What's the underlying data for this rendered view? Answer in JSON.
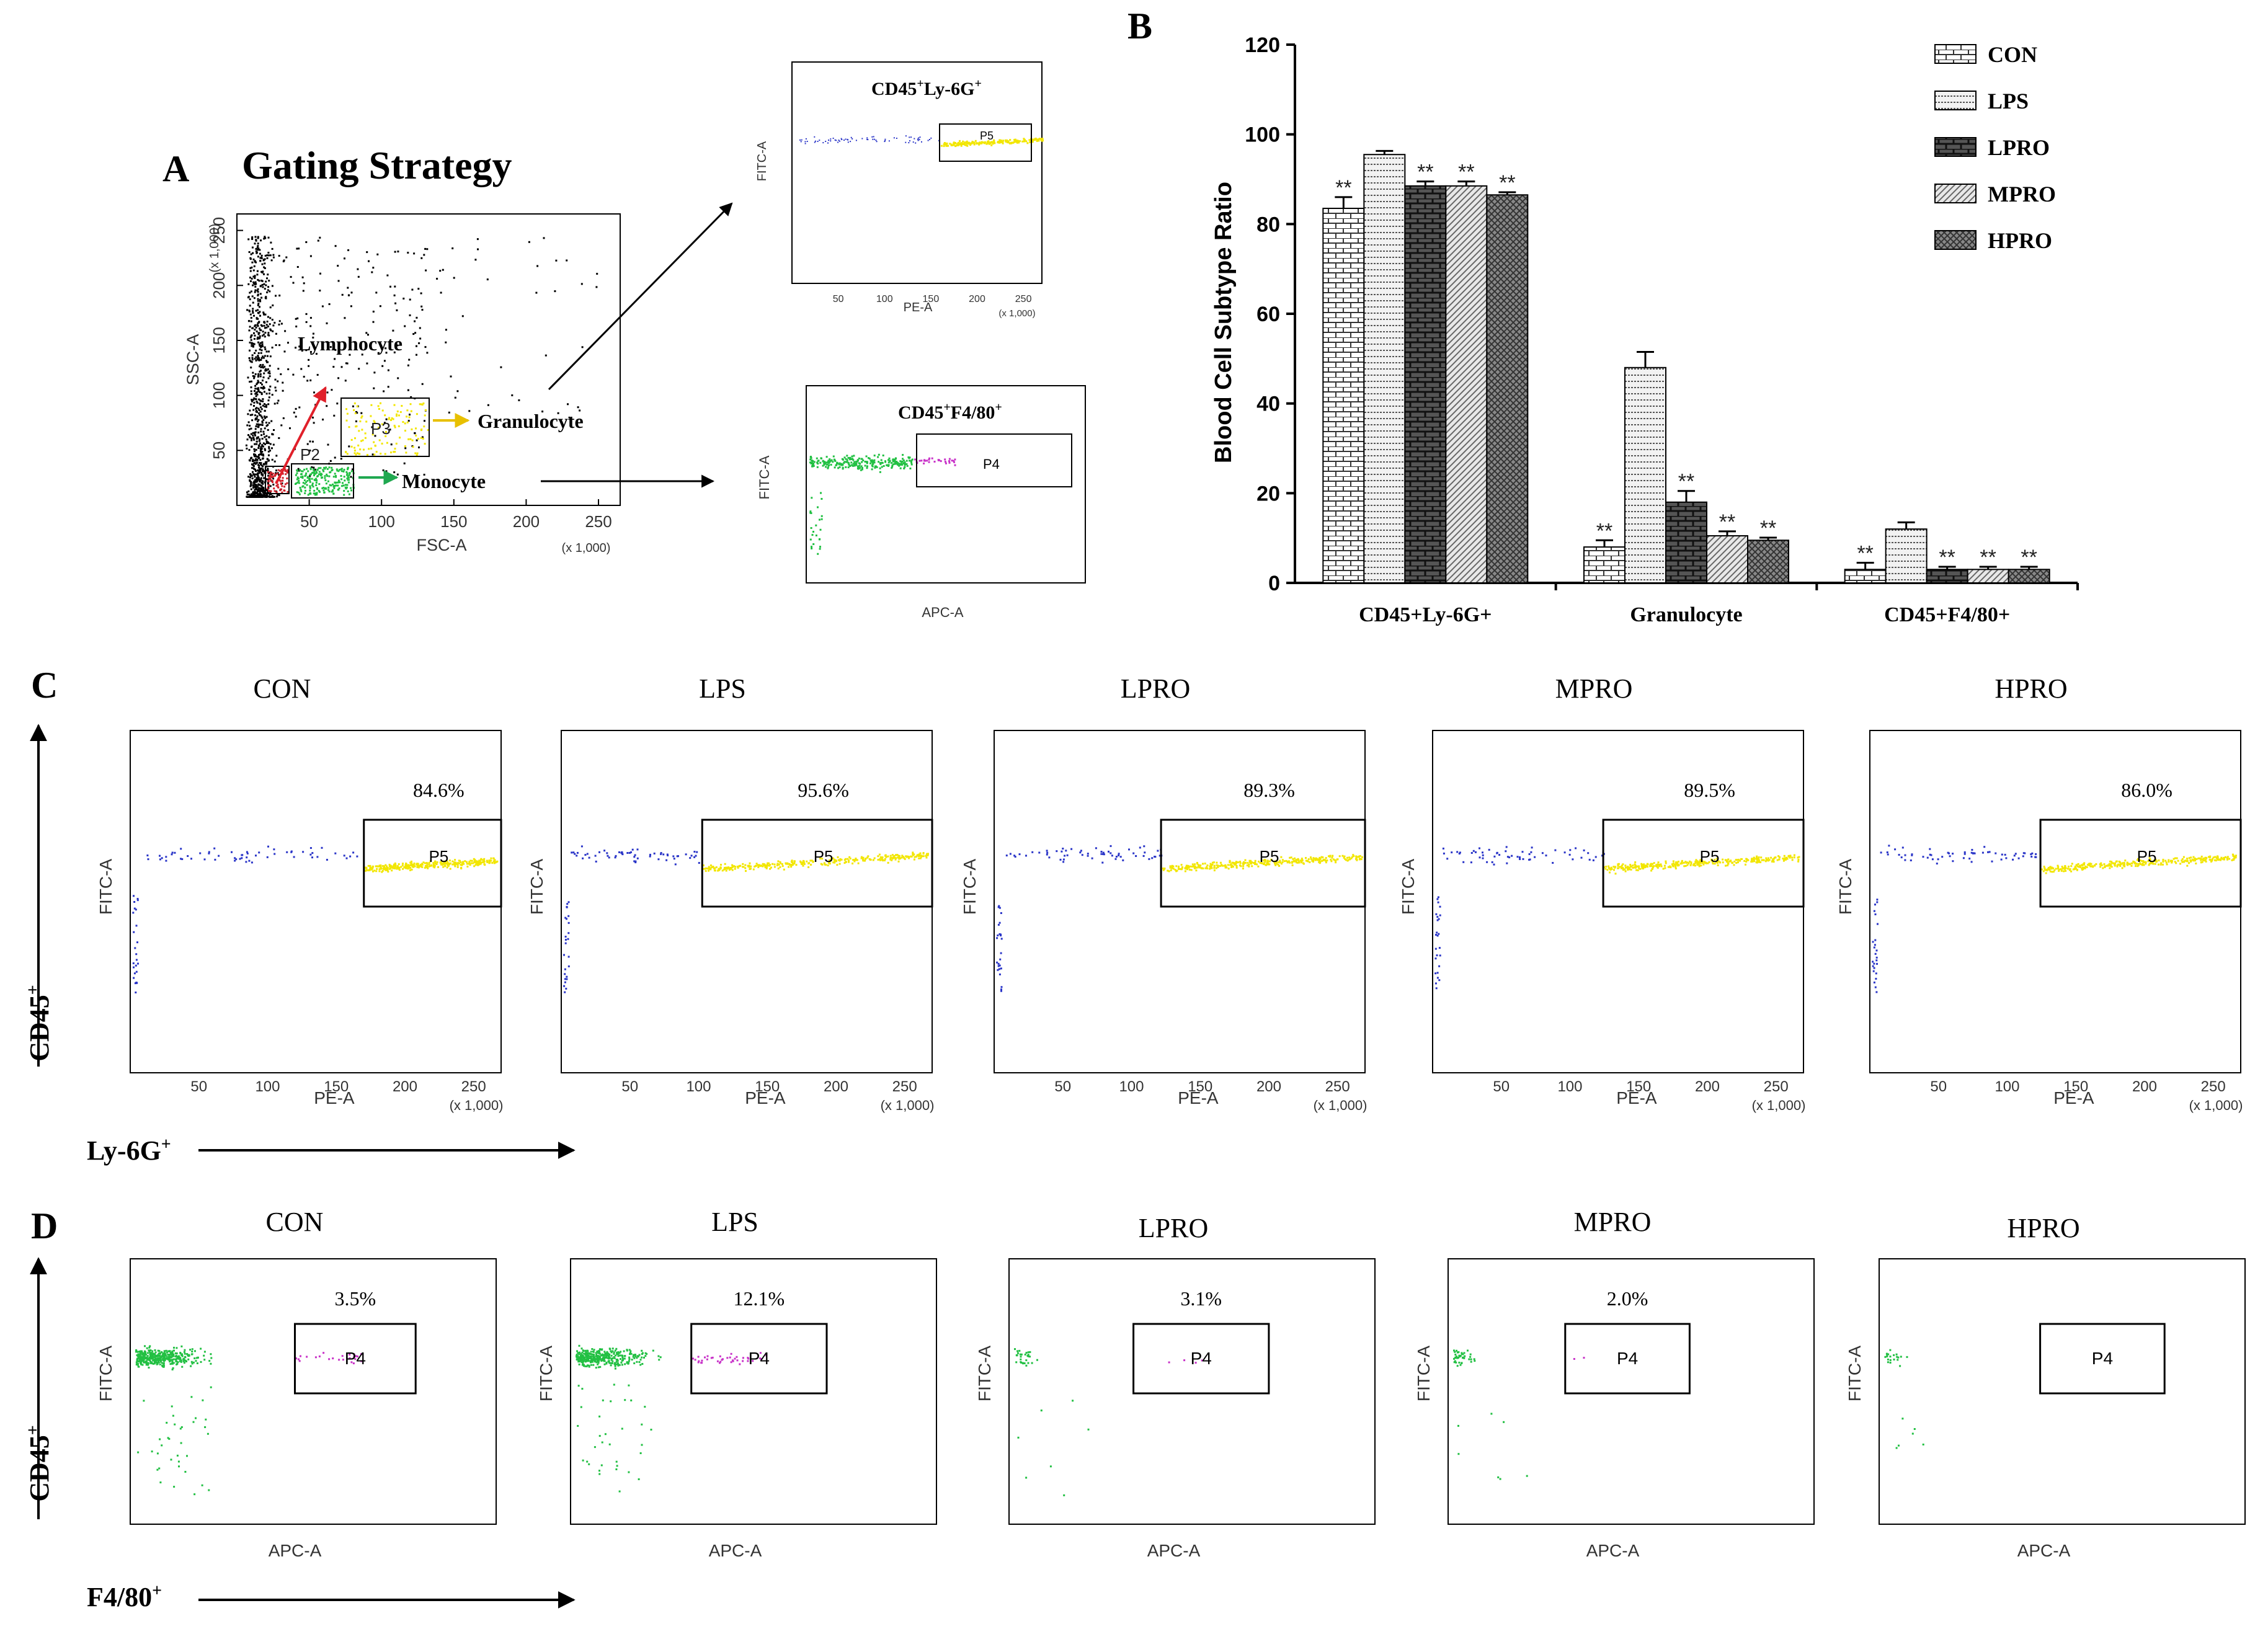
{
  "panel_letters": {
    "A": "A",
    "B": "B",
    "C": "C",
    "D": "D"
  },
  "panel_a": {
    "title": "Gating Strategy",
    "main_plot": {
      "xlabel": "FSC-A",
      "ylabel": "SSC-A",
      "x_ticks": [
        "50",
        "100",
        "150",
        "200",
        "250"
      ],
      "y_ticks": [
        "50",
        "100",
        "150",
        "200",
        "250"
      ],
      "x_scale": "(x 1,000)",
      "y_scale": "(x 1,000)",
      "gates": [
        "P2",
        "P3"
      ],
      "labels": {
        "lymphocyte": "Lymphocyte",
        "granulocyte": "Granulocyte",
        "monocyte": "Monocyte"
      }
    },
    "ly6g_plot": {
      "title": "CD45",
      "title_sup": "+",
      "title_mid": "Ly-6G",
      "title_sup2": "+",
      "xlabel": "PE-A",
      "ylabel": "FITC-A",
      "x_ticks": [
        "50",
        "100",
        "150",
        "200",
        "250"
      ],
      "x_scale": "(x 1,000)",
      "gate": "P5"
    },
    "f480_plot": {
      "title": "CD45",
      "title_sup": "+",
      "title_mid": "F4/80",
      "title_sup2": "+",
      "xlabel": "APC-A",
      "ylabel": "FITC-A",
      "gate": "P4"
    }
  },
  "chart_data": {
    "type": "bar",
    "categories": [
      "CD45+Ly-6G+",
      "Granulocyte",
      "CD45+F4/80+"
    ],
    "series": [
      {
        "name": "CON",
        "values": [
          83.5,
          8.0,
          3.0
        ],
        "errors": [
          2.5,
          1.5,
          1.5
        ],
        "stars": [
          "**",
          "**",
          "**"
        ],
        "pattern": "brick-light"
      },
      {
        "name": "LPS",
        "values": [
          95.5,
          48.0,
          12.0
        ],
        "errors": [
          0.8,
          3.5,
          1.5
        ],
        "stars": [
          "",
          "",
          ""
        ],
        "pattern": "dots"
      },
      {
        "name": "LPRO",
        "values": [
          88.5,
          18.0,
          3.0
        ],
        "errors": [
          1.0,
          2.5,
          0.6
        ],
        "stars": [
          "**",
          "**",
          "**"
        ],
        "pattern": "brick-dark"
      },
      {
        "name": "MPRO",
        "values": [
          88.5,
          10.5,
          3.0
        ],
        "errors": [
          1.0,
          1.0,
          0.6
        ],
        "stars": [
          "**",
          "**",
          "**"
        ],
        "pattern": "hatch"
      },
      {
        "name": "HPRO",
        "values": [
          86.5,
          9.5,
          3.0
        ],
        "errors": [
          0.6,
          0.6,
          0.6
        ],
        "stars": [
          "**",
          "**",
          "**"
        ],
        "pattern": "cross"
      }
    ],
    "ylabel": "Blood Cell Subtype Ratio",
    "ylim": [
      0,
      120
    ],
    "yticks": [
      "0",
      "20",
      "40",
      "60",
      "80",
      "100",
      "120"
    ],
    "legend_position": "top-right"
  },
  "panel_c": {
    "axis_y": "CD45",
    "axis_y_sup": "+",
    "axis_x": "Ly-6G",
    "axis_x_sup": "+",
    "plot_xlabel": "PE-A",
    "plot_ylabel": "FITC-A",
    "x_ticks": [
      "50",
      "100",
      "150",
      "200",
      "250"
    ],
    "x_scale": "(x 1,000)",
    "gate": "P5",
    "plots": [
      {
        "title": "CON",
        "percent": "84.6%",
        "gate_start": 0.63
      },
      {
        "title": "LPS",
        "percent": "95.6%",
        "gate_start": 0.38
      },
      {
        "title": "LPRO",
        "percent": "89.3%",
        "gate_start": 0.45
      },
      {
        "title": "MPRO",
        "percent": "89.5%",
        "gate_start": 0.46
      },
      {
        "title": "HPRO",
        "percent": "86.0%",
        "gate_start": 0.46
      }
    ]
  },
  "panel_d": {
    "axis_y": "CD45",
    "axis_y_sup": "+",
    "axis_x": "F4/80",
    "axis_x_sup": "+",
    "plot_xlabel": "APC-A",
    "plot_ylabel": "FITC-A",
    "gate": "P4",
    "plots": [
      {
        "title": "CON",
        "percent": "3.5%"
      },
      {
        "title": "LPS",
        "percent": "12.1%"
      },
      {
        "title": "LPRO",
        "percent": "3.1%"
      },
      {
        "title": "MPRO",
        "percent": "2.0%"
      },
      {
        "title": "HPRO",
        "percent": ""
      }
    ]
  },
  "colors": {
    "lymph_dots": "#000000",
    "gran_dots": "#f2e600",
    "mono_dots": "#22c043",
    "blue_dots": "#2a35c8",
    "magenta_dots": "#c832c8",
    "red_dots": "#d0202a",
    "arrow_red": "#e0202a",
    "arrow_yellow": "#e8c000",
    "arrow_green": "#20a850"
  }
}
